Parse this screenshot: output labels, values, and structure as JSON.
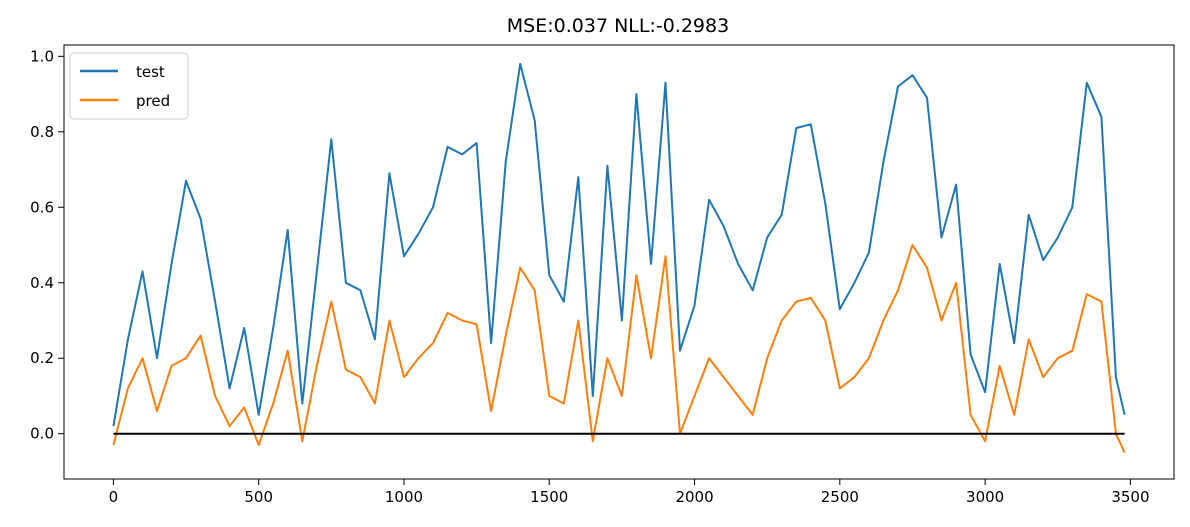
{
  "chart_data": {
    "type": "line",
    "title": "MSE:0.037  NLL:-0.2983",
    "xlabel": "",
    "ylabel": "",
    "xlim": [
      -170,
      3650
    ],
    "ylim": [
      -0.12,
      1.03
    ],
    "xticks": [
      0,
      500,
      1000,
      1500,
      2000,
      2500,
      3000,
      3500
    ],
    "xtick_labels": [
      "0",
      "500",
      "1000",
      "1500",
      "2000",
      "2500",
      "3000",
      "3500"
    ],
    "yticks": [
      0.0,
      0.2,
      0.4,
      0.6,
      0.8,
      1.0
    ],
    "ytick_labels": [
      "0.0",
      "0.2",
      "0.4",
      "0.6",
      "0.8",
      "1.0"
    ],
    "grid": false,
    "legend_position": "top-left",
    "series": [
      {
        "name": "test",
        "color": "#1f77b4",
        "x": [
          0,
          50,
          100,
          150,
          200,
          250,
          300,
          350,
          400,
          450,
          500,
          550,
          600,
          650,
          700,
          750,
          800,
          850,
          900,
          950,
          1000,
          1050,
          1100,
          1150,
          1200,
          1250,
          1300,
          1350,
          1400,
          1450,
          1500,
          1550,
          1600,
          1650,
          1700,
          1750,
          1800,
          1850,
          1900,
          1950,
          2000,
          2050,
          2100,
          2150,
          2200,
          2250,
          2300,
          2350,
          2400,
          2450,
          2500,
          2550,
          2600,
          2650,
          2700,
          2750,
          2800,
          2850,
          2900,
          2950,
          3000,
          3050,
          3100,
          3150,
          3200,
          3250,
          3300,
          3350,
          3400,
          3450,
          3480
        ],
        "y": [
          0.02,
          0.25,
          0.43,
          0.2,
          0.45,
          0.67,
          0.57,
          0.35,
          0.12,
          0.28,
          0.05,
          0.28,
          0.54,
          0.08,
          0.43,
          0.78,
          0.4,
          0.38,
          0.25,
          0.69,
          0.47,
          0.53,
          0.6,
          0.76,
          0.74,
          0.77,
          0.24,
          0.72,
          0.98,
          0.83,
          0.42,
          0.35,
          0.68,
          0.1,
          0.71,
          0.3,
          0.9,
          0.45,
          0.93,
          0.22,
          0.34,
          0.62,
          0.55,
          0.45,
          0.38,
          0.52,
          0.58,
          0.81,
          0.82,
          0.61,
          0.33,
          0.4,
          0.48,
          0.72,
          0.92,
          0.95,
          0.89,
          0.52,
          0.66,
          0.21,
          0.11,
          0.45,
          0.24,
          0.58,
          0.46,
          0.52,
          0.6,
          0.93,
          0.84,
          0.15,
          0.05
        ]
      },
      {
        "name": "pred",
        "color": "#ff7f0e",
        "x": [
          0,
          50,
          100,
          150,
          200,
          250,
          300,
          350,
          400,
          450,
          500,
          550,
          600,
          650,
          700,
          750,
          800,
          850,
          900,
          950,
          1000,
          1050,
          1100,
          1150,
          1200,
          1250,
          1300,
          1350,
          1400,
          1450,
          1500,
          1550,
          1600,
          1650,
          1700,
          1750,
          1800,
          1850,
          1900,
          1950,
          2000,
          2050,
          2100,
          2150,
          2200,
          2250,
          2300,
          2350,
          2400,
          2450,
          2500,
          2550,
          2600,
          2650,
          2700,
          2750,
          2800,
          2850,
          2900,
          2950,
          3000,
          3050,
          3100,
          3150,
          3200,
          3250,
          3300,
          3350,
          3400,
          3450,
          3480
        ],
        "y": [
          -0.03,
          0.12,
          0.2,
          0.06,
          0.18,
          0.2,
          0.26,
          0.1,
          0.02,
          0.07,
          -0.03,
          0.08,
          0.22,
          -0.02,
          0.18,
          0.35,
          0.17,
          0.15,
          0.08,
          0.3,
          0.15,
          0.2,
          0.24,
          0.32,
          0.3,
          0.29,
          0.06,
          0.26,
          0.44,
          0.38,
          0.1,
          0.08,
          0.3,
          -0.02,
          0.2,
          0.1,
          0.42,
          0.2,
          0.47,
          0.0,
          0.1,
          0.2,
          0.15,
          0.1,
          0.05,
          0.2,
          0.3,
          0.35,
          0.36,
          0.3,
          0.12,
          0.15,
          0.2,
          0.3,
          0.38,
          0.5,
          0.44,
          0.3,
          0.4,
          0.05,
          -0.02,
          0.18,
          0.05,
          0.25,
          0.15,
          0.2,
          0.22,
          0.37,
          0.35,
          0.0,
          -0.05
        ]
      },
      {
        "name": "",
        "color": "#000000",
        "x": [
          0,
          3480
        ],
        "y": [
          0,
          0
        ]
      }
    ]
  }
}
